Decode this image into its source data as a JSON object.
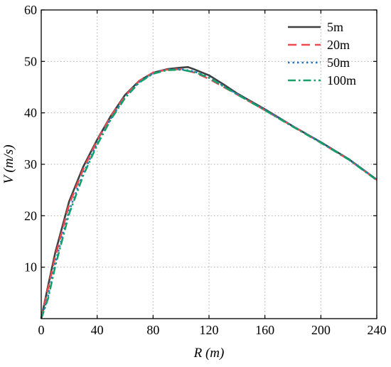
{
  "chart_data": {
    "type": "line",
    "xlabel": "R (m)",
    "ylabel": "V (m/s)",
    "xlim": [
      0,
      240
    ],
    "ylim": [
      0,
      60
    ],
    "xticks": [
      0,
      40,
      80,
      120,
      160,
      200,
      240
    ],
    "yticks": [
      10,
      20,
      30,
      40,
      50,
      60
    ],
    "y_origin_label": "",
    "grid": true,
    "legend_position": "top-right",
    "series": [
      {
        "name": "5m",
        "color": "#404040",
        "dash": "solid",
        "points": [
          [
            0,
            0
          ],
          [
            5,
            6.5
          ],
          [
            10,
            12.8
          ],
          [
            20,
            22.8
          ],
          [
            30,
            29.5
          ],
          [
            40,
            34.8
          ],
          [
            50,
            39.5
          ],
          [
            60,
            43.5
          ],
          [
            70,
            46.2
          ],
          [
            80,
            47.8
          ],
          [
            90,
            48.5
          ],
          [
            100,
            48.8
          ],
          [
            105,
            48.9
          ],
          [
            110,
            48.4
          ],
          [
            120,
            47.3
          ],
          [
            130,
            45.6
          ],
          [
            140,
            43.8
          ],
          [
            160,
            40.7
          ],
          [
            180,
            37.4
          ],
          [
            200,
            34.3
          ],
          [
            220,
            31.0
          ],
          [
            240,
            27.0
          ]
        ]
      },
      {
        "name": "20m",
        "color": "#f0484e",
        "dash": "long",
        "points": [
          [
            0,
            0
          ],
          [
            5,
            6.0
          ],
          [
            10,
            12.0
          ],
          [
            20,
            22.2
          ],
          [
            30,
            29.0
          ],
          [
            40,
            34.6
          ],
          [
            50,
            39.4
          ],
          [
            60,
            43.3
          ],
          [
            70,
            46.2
          ],
          [
            80,
            47.8
          ],
          [
            90,
            48.4
          ],
          [
            100,
            48.5
          ],
          [
            110,
            47.8
          ],
          [
            120,
            46.6
          ],
          [
            130,
            45.1
          ],
          [
            140,
            43.6
          ],
          [
            160,
            40.5
          ],
          [
            180,
            37.4
          ],
          [
            200,
            34.2
          ],
          [
            220,
            30.9
          ],
          [
            240,
            27.0
          ]
        ]
      },
      {
        "name": "50m",
        "color": "#1f77c0",
        "dash": "dot",
        "points": [
          [
            0,
            0
          ],
          [
            5,
            4.5
          ],
          [
            10,
            10.8
          ],
          [
            20,
            21.0
          ],
          [
            30,
            28.2
          ],
          [
            40,
            34.1
          ],
          [
            50,
            39.0
          ],
          [
            60,
            43.1
          ],
          [
            70,
            46.0
          ],
          [
            80,
            47.7
          ],
          [
            90,
            48.4
          ],
          [
            100,
            48.5
          ],
          [
            110,
            48.0
          ],
          [
            120,
            46.9
          ],
          [
            130,
            45.3
          ],
          [
            140,
            43.7
          ],
          [
            160,
            40.6
          ],
          [
            180,
            37.4
          ],
          [
            200,
            34.3
          ],
          [
            220,
            31.0
          ],
          [
            240,
            27.0
          ]
        ]
      },
      {
        "name": "100m",
        "color": "#15a06a",
        "dash": "dashdot",
        "points": [
          [
            0,
            0
          ],
          [
            5,
            4.0
          ],
          [
            10,
            10.2
          ],
          [
            20,
            20.4
          ],
          [
            30,
            27.8
          ],
          [
            40,
            33.8
          ],
          [
            50,
            38.8
          ],
          [
            60,
            42.9
          ],
          [
            70,
            45.9
          ],
          [
            80,
            47.6
          ],
          [
            90,
            48.3
          ],
          [
            100,
            48.4
          ],
          [
            110,
            47.9
          ],
          [
            120,
            46.8
          ],
          [
            130,
            45.2
          ],
          [
            140,
            43.6
          ],
          [
            160,
            40.5
          ],
          [
            180,
            37.3
          ],
          [
            200,
            34.2
          ],
          [
            220,
            30.9
          ],
          [
            240,
            26.9
          ]
        ]
      }
    ]
  }
}
